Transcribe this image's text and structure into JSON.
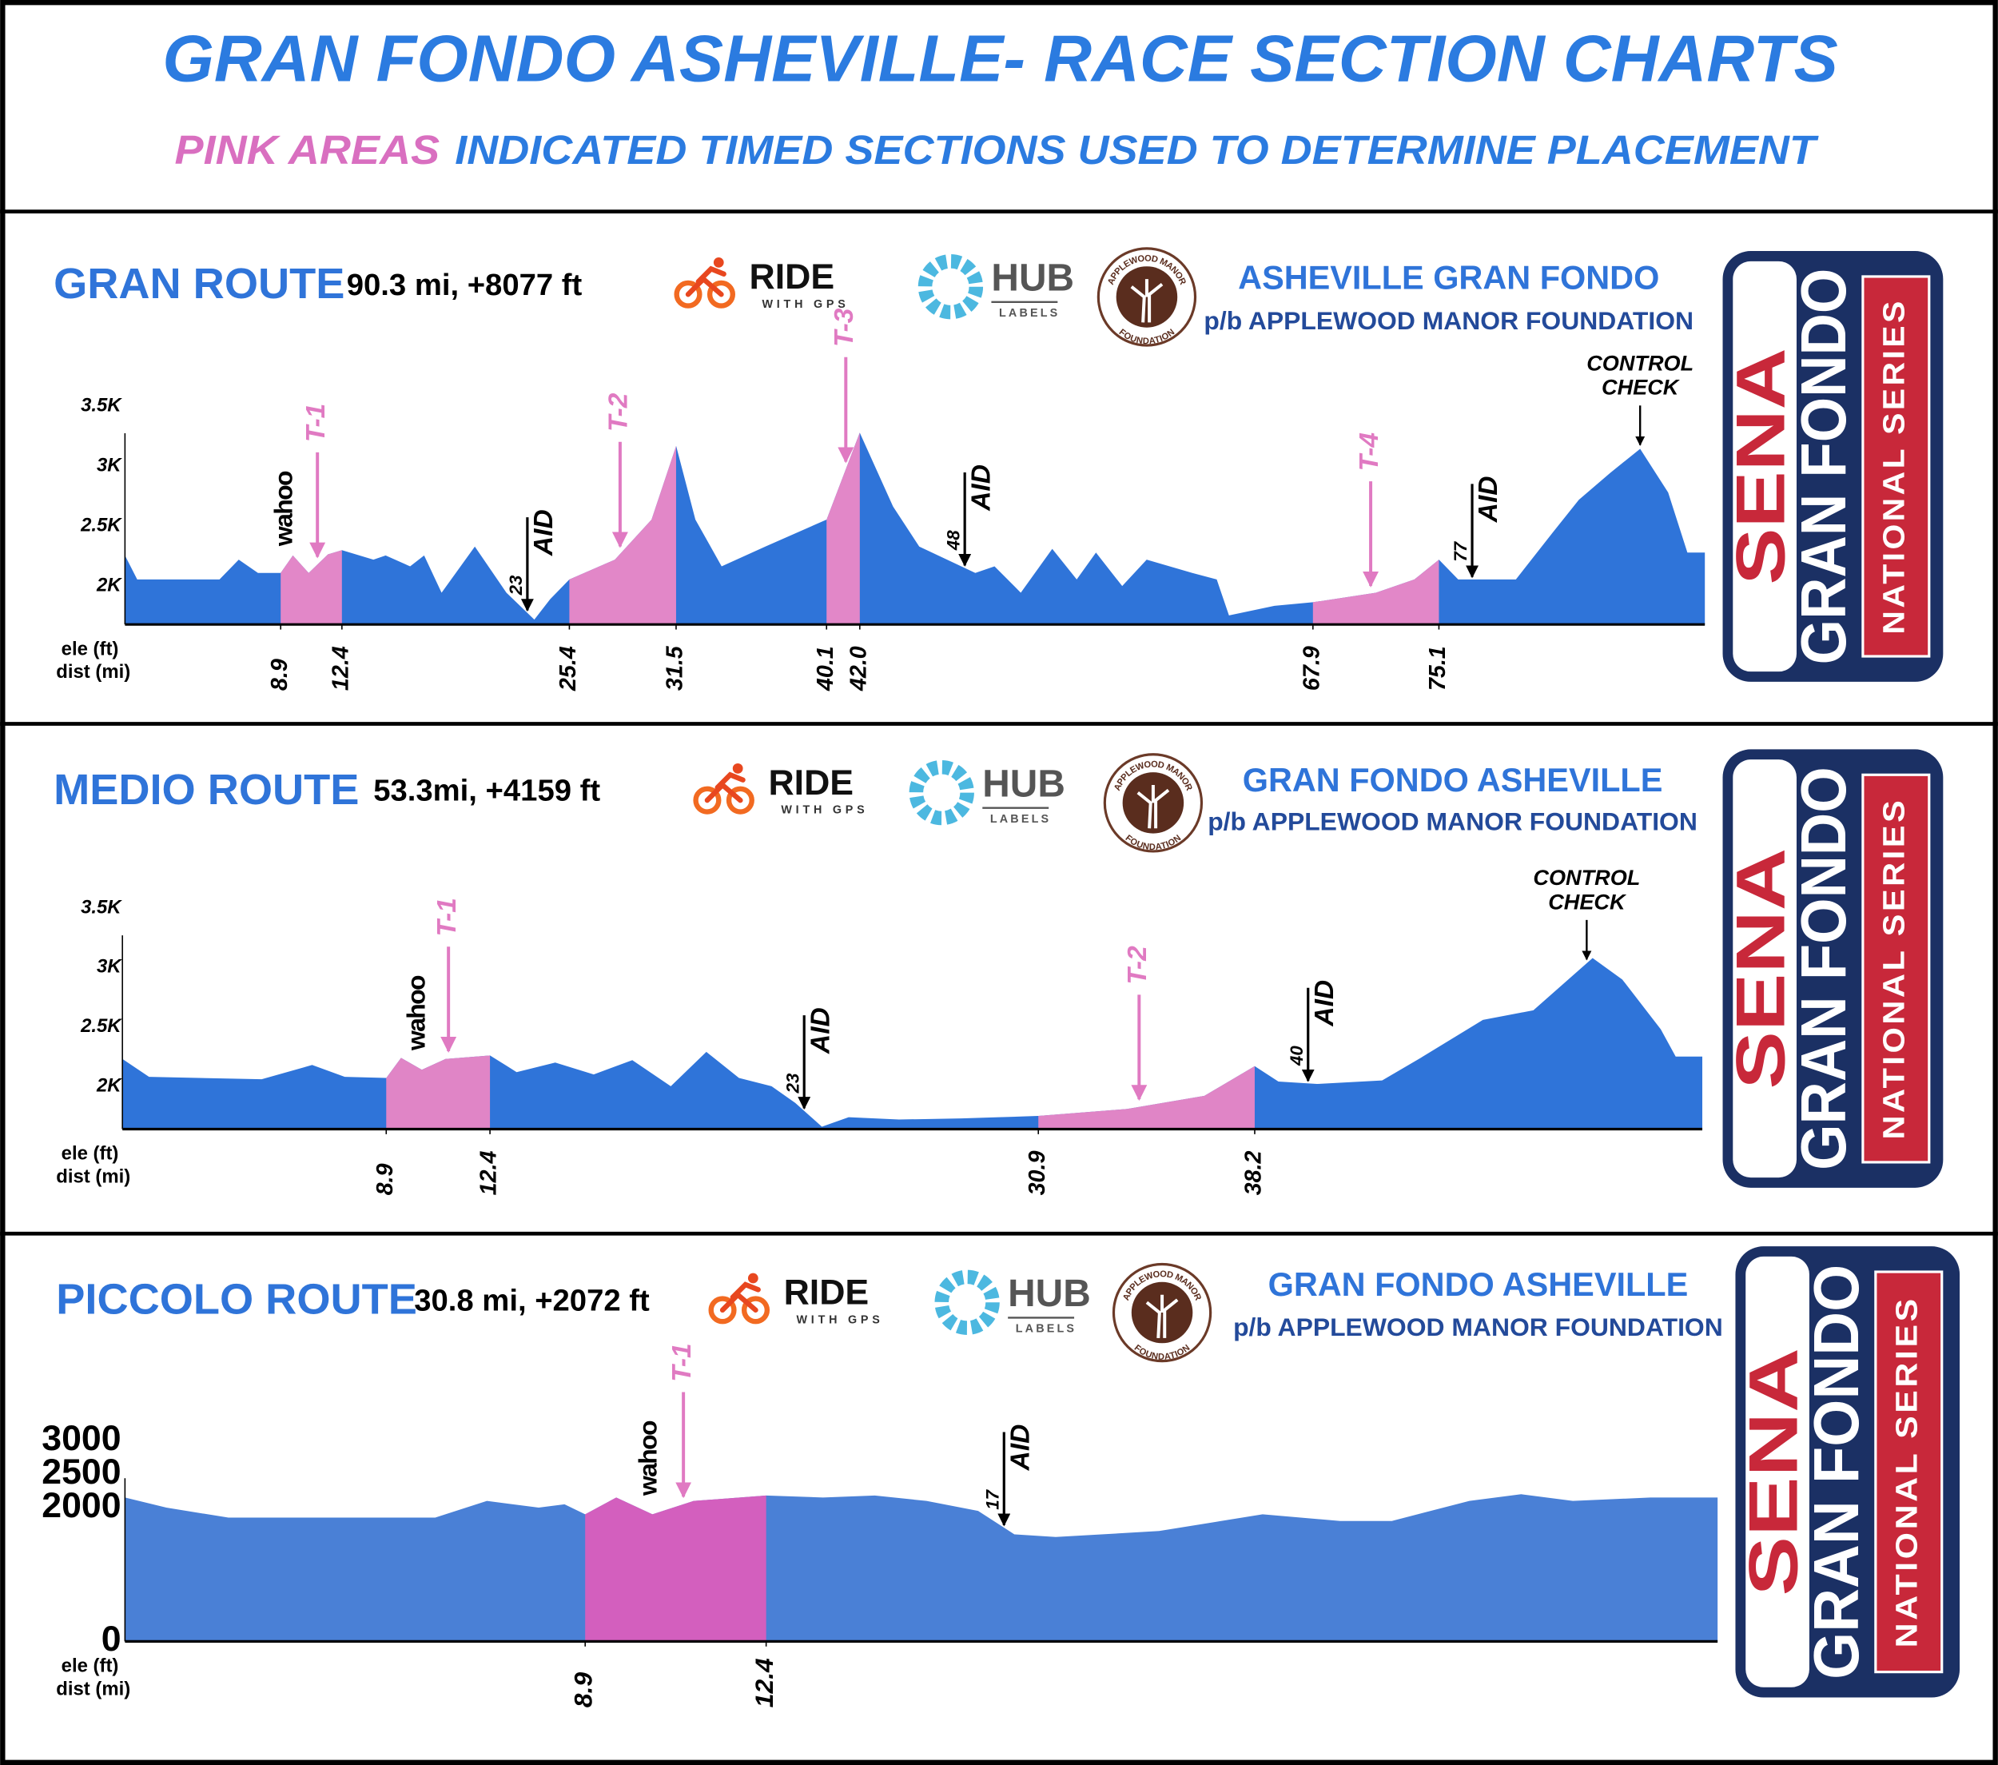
{
  "header": {
    "title": "GRAN FONDO ASHEVILLE- RACE SECTION CHARTS",
    "subtitle_highlight": "PINK AREAS",
    "subtitle": "INDICATED TIMED SECTIONS USED TO DETERMINE PLACEMENT"
  },
  "chart_data": [
    {
      "type": "area",
      "title": "GRAN ROUTE",
      "subtitle": "90.3 mi, +8077 ft",
      "x_label": "dist (mi)",
      "y_label": "ele (ft)",
      "x": [
        0,
        0.7,
        5.4,
        6.5,
        7.6,
        8.9,
        9.6,
        10.5,
        11.6,
        12.4,
        14.2,
        14.9,
        16.3,
        17.1,
        18.1,
        20,
        21.8,
        23.4,
        24.3,
        25.4,
        28,
        30.1,
        31.5,
        32.6,
        34.1,
        36.6,
        40.1,
        42,
        43.9,
        45.4,
        48.6,
        49.7,
        51.2,
        53,
        54.4,
        55.5,
        57,
        58.4,
        61,
        62.4,
        63.1,
        65.7,
        67.9,
        71.5,
        73.7,
        75.1,
        76.2,
        79.5,
        81.6,
        83.1,
        84.9,
        86.6,
        88.2,
        89.3,
        90.3
      ],
      "values": [
        2255,
        2055,
        2055,
        2220,
        2110,
        2110,
        2255,
        2110,
        2265,
        2300,
        2220,
        2255,
        2165,
        2255,
        1945,
        2330,
        1945,
        1720,
        1890,
        2055,
        2220,
        2555,
        3170,
        2555,
        2165,
        2330,
        2555,
        3280,
        2665,
        2330,
        2110,
        2165,
        1945,
        2310,
        2055,
        2280,
        2000,
        2220,
        2110,
        2055,
        1755,
        1835,
        1865,
        1945,
        2055,
        2220,
        2055,
        2055,
        2445,
        2720,
        2945,
        3145,
        2780,
        2280,
        2280
      ],
      "color": "#2f74d9",
      "timed_color": "#e287c8",
      "xlim": [
        0,
        90.3
      ],
      "ylim": [
        1680,
        3700
      ],
      "xticks": [
        8.9,
        12.4,
        25.4,
        31.5,
        40.1,
        {
          "value": 42,
          "label": "42.0"
        },
        67.9,
        75.1
      ],
      "yticks": [
        {
          "value": 3500,
          "label": "3.5K"
        },
        {
          "value": 3000,
          "label": "3K"
        },
        {
          "value": 2500,
          "label": "2.5K"
        },
        {
          "value": 2000,
          "label": "2K"
        }
      ],
      "annotations": [
        {
          "kind": "brand",
          "label": "wahoo",
          "x": 9.9
        },
        {
          "kind": "timed",
          "label": "T-1",
          "x": 11
        },
        {
          "kind": "aid",
          "label": "AID",
          "mile": 23
        },
        {
          "kind": "timed",
          "label": "T-2",
          "x": 28.3
        },
        {
          "kind": "timed",
          "label": "T-3",
          "x": 41.2
        },
        {
          "kind": "aid",
          "label": "AID",
          "mile": 48
        },
        {
          "kind": "timed",
          "label": "T-4",
          "x": 71.2
        },
        {
          "kind": "aid",
          "label": "AID",
          "mile": 77
        },
        {
          "kind": "control",
          "lines": [
            "CONTROL",
            "CHECK"
          ],
          "x": 86.6
        }
      ],
      "sponsors": {
        "ride": "RIDE",
        "ride_sub": "WITH GPS",
        "hub": "HUB",
        "hub_sub": "LABELS",
        "ring_top": "APPLEWOOD MANOR",
        "ring_bottom": "FOUNDATION",
        "event": "ASHEVILLE GRAN FONDO",
        "presented_by": "p/b APPLEWOOD MANOR FOUNDATION"
      },
      "badge": {
        "brand": "SENA",
        "event": "GRAN FONDO",
        "series": "NATIONAL SERIES"
      }
    },
    {
      "type": "area",
      "title": "MEDIO ROUTE",
      "subtitle": "53.3mi, +4159 ft",
      "x_label": "dist (mi)",
      "y_label": "ele (ft)",
      "x": [
        0,
        0.9,
        4.7,
        6.4,
        7.5,
        8.9,
        9.4,
        10.1,
        10.9,
        12.4,
        13.3,
        14.6,
        15.9,
        17.2,
        18.5,
        19.7,
        20.8,
        21.9,
        22.7,
        23.6,
        24.5,
        26.2,
        28.3,
        30.9,
        33.9,
        36.5,
        38.2,
        39,
        40.3,
        42.5,
        43.8,
        45.9,
        47.6,
        49.6,
        50.6,
        51.9,
        52.4,
        53.3
      ],
      "values": [
        2230,
        2080,
        2060,
        2180,
        2080,
        2070,
        2240,
        2140,
        2230,
        2260,
        2120,
        2200,
        2100,
        2220,
        2000,
        2290,
        2070,
        2000,
        1860,
        1660,
        1740,
        1720,
        1730,
        1750,
        1810,
        1920,
        2170,
        2040,
        2020,
        2050,
        2240,
        2560,
        2640,
        3080,
        2900,
        2480,
        2250,
        2250
      ],
      "color": "#2f74d9",
      "timed_color": "#e085c6",
      "xlim": [
        0,
        53.3
      ],
      "ylim": [
        1640,
        3700
      ],
      "xticks": [
        8.9,
        12.4,
        30.9,
        38.2
      ],
      "yticks": [
        {
          "value": 3500,
          "label": "3.5K"
        },
        {
          "value": 3000,
          "label": "3K"
        },
        {
          "value": 2500,
          "label": "2.5K"
        },
        {
          "value": 2000,
          "label": "2K"
        }
      ],
      "annotations": [
        {
          "kind": "brand",
          "label": "wahoo",
          "x": 10.4
        },
        {
          "kind": "timed",
          "label": "T-1",
          "x": 11
        },
        {
          "kind": "aid",
          "label": "AID",
          "mile": 23
        },
        {
          "kind": "timed",
          "label": "T-2",
          "x": 34.3
        },
        {
          "kind": "aid",
          "label": "AID",
          "mile": 40
        },
        {
          "kind": "control",
          "lines": [
            "CONTROL",
            "CHECK"
          ],
          "x": 49.4
        }
      ],
      "sponsors": {
        "ride": "RIDE",
        "ride_sub": "WITH GPS",
        "hub": "HUB",
        "hub_sub": "LABELS",
        "ring_top": "APPLEWOOD MANOR",
        "ring_bottom": "FOUNDATION",
        "event": "GRAN FONDO ASHEVILLE",
        "presented_by": "p/b APPLEWOOD MANOR FOUNDATION"
      },
      "badge": {
        "brand": "SENA",
        "event": "GRAN FONDO",
        "series": "NATIONAL SERIES"
      }
    },
    {
      "type": "area",
      "title": "PICCOLO ROUTE",
      "subtitle": "30.8 mi, +2072 ft",
      "x_label": "dist (mi)",
      "y_label": "ele (ft)",
      "x": [
        0,
        0.8,
        2,
        6,
        7,
        8,
        8.5,
        8.9,
        9.5,
        10.2,
        11,
        12.4,
        13.5,
        14.5,
        15.5,
        16.5,
        17.2,
        18,
        20,
        22,
        23.5,
        24.5,
        26,
        27,
        28,
        29.5,
        30.8
      ],
      "values": [
        2150,
        2000,
        1850,
        1850,
        2100,
        2000,
        2050,
        1900,
        2150,
        1900,
        2100,
        2180,
        2150,
        2180,
        2100,
        1950,
        1600,
        1560,
        1650,
        1900,
        1800,
        1800,
        2100,
        2200,
        2100,
        2150,
        2150
      ],
      "color": "#4a80d6",
      "timed_color": "#d35fbe",
      "xlim": [
        0,
        30.8
      ],
      "ylim": [
        0,
        3200
      ],
      "xticks": [
        8.9,
        12.4
      ],
      "yticks": [
        3000,
        2500,
        2000,
        0
      ],
      "annotations": [
        {
          "kind": "brand",
          "label": "wahoo",
          "x": 10.4
        },
        {
          "kind": "timed",
          "label": "T-1",
          "x": 10.8
        },
        {
          "kind": "aid",
          "label": "AID",
          "mile": 17
        }
      ],
      "sponsors": {
        "ride": "RIDE",
        "ride_sub": "WITH GPS",
        "hub": "HUB",
        "hub_sub": "LABELS",
        "ring_top": "APPLEWOOD MANOR",
        "ring_bottom": "FOUNDATION",
        "event": "GRAN FONDO ASHEVILLE",
        "presented_by": "p/b APPLEWOOD MANOR FOUNDATION"
      },
      "badge": {
        "brand": "SENA",
        "event": "GRAN FONDO",
        "series": "NATIONAL SERIES"
      }
    }
  ]
}
